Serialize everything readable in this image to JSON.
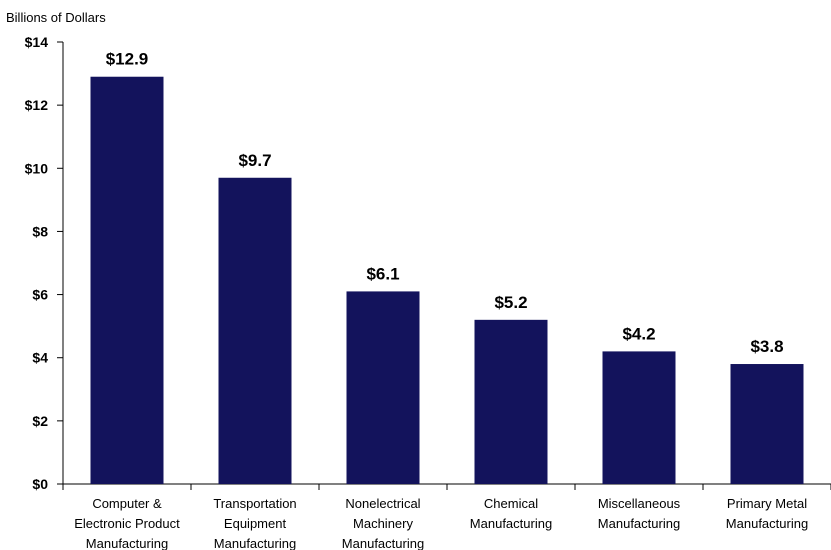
{
  "chart_data": {
    "type": "bar",
    "title": "",
    "xlabel": "",
    "ylabel": "Billions of Dollars",
    "ylim": [
      0,
      14
    ],
    "yticks": [
      "$0",
      "$2",
      "$4",
      "$6",
      "$8",
      "$10",
      "$12",
      "$14"
    ],
    "ytick_values": [
      0,
      2,
      4,
      6,
      8,
      10,
      12,
      14
    ],
    "categories": [
      [
        "Computer &",
        "Electronic Product",
        "Manufacturing"
      ],
      [
        "Transportation",
        "Equipment",
        "Manufacturing"
      ],
      [
        "Nonelectrical",
        "Machinery",
        "Manufacturing"
      ],
      [
        "Chemical",
        "Manufacturing"
      ],
      [
        "Miscellaneous",
        "Manufacturing"
      ],
      [
        "Primary Metal",
        "Manufacturing"
      ]
    ],
    "values": [
      12.9,
      9.7,
      6.1,
      5.2,
      4.2,
      3.8
    ],
    "data_labels": [
      "$12.9",
      "$9.7",
      "$6.1",
      "$5.2",
      "$4.2",
      "$3.8"
    ],
    "bar_color": "#13135c",
    "grid": false,
    "legend": "none"
  }
}
